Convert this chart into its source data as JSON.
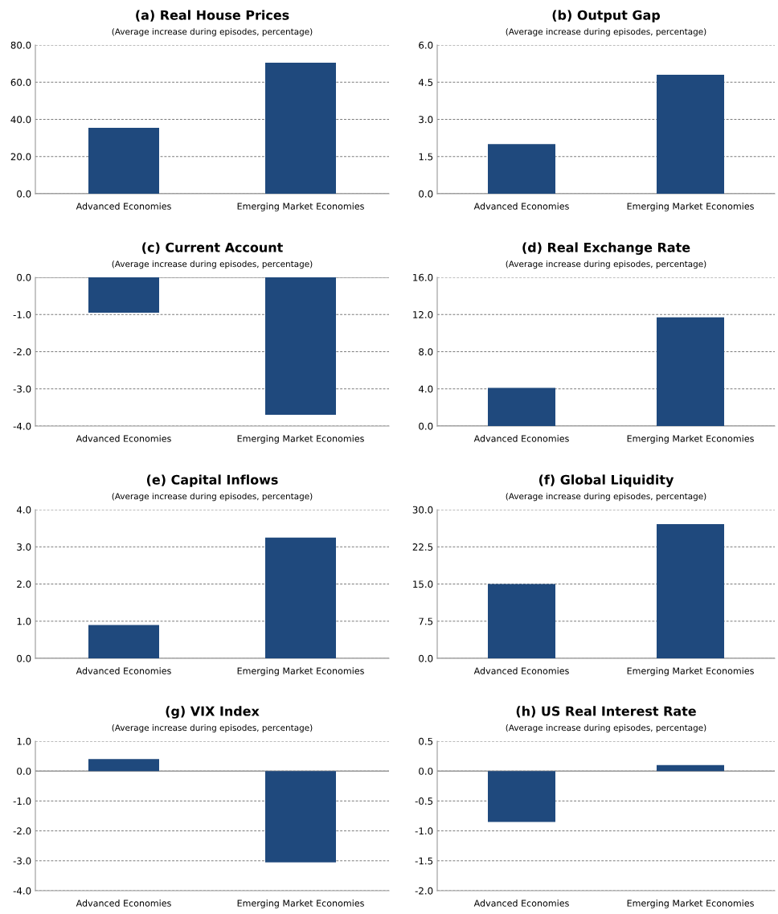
{
  "chart_data": [
    {
      "type": "bar",
      "title": "(a) Real House Prices",
      "subtitle": "(Average increase during episodes, percentage)",
      "categories": [
        "Advanced Economies",
        "Emerging Market Economies"
      ],
      "values": [
        35.5,
        70.5
      ],
      "color": "#1f497d",
      "ylim": [
        0,
        80
      ],
      "yticks": [
        {
          "value": 0,
          "label": "0.0"
        },
        {
          "value": 20,
          "label": "20.0"
        },
        {
          "value": 40,
          "label": "40.0"
        },
        {
          "value": 60,
          "label": "60.0"
        },
        {
          "value": 80,
          "label": "80.0"
        }
      ],
      "grid": "y"
    },
    {
      "type": "bar",
      "title": "(b) Output Gap",
      "subtitle": "(Average increase during episodes, percentage)",
      "categories": [
        "Advanced Economies",
        "Emerging Market Economies"
      ],
      "values": [
        2.0,
        4.8
      ],
      "color": "#1f497d",
      "ylim": [
        0,
        6
      ],
      "yticks": [
        {
          "value": 0,
          "label": "0.0"
        },
        {
          "value": 1.5,
          "label": "1.5"
        },
        {
          "value": 3,
          "label": "3.0"
        },
        {
          "value": 4.5,
          "label": "4.5"
        },
        {
          "value": 6,
          "label": "6.0"
        }
      ],
      "grid": "y"
    },
    {
      "type": "bar",
      "title": "(c) Current Account",
      "subtitle": "(Average increase during episodes, percentage)",
      "categories": [
        "Advanced Economies",
        "Emerging Market Economies"
      ],
      "values": [
        -0.95,
        -3.7
      ],
      "color": "#1f497d",
      "ylim": [
        -4,
        0
      ],
      "yticks": [
        {
          "value": -4,
          "label": "-4.0"
        },
        {
          "value": -3,
          "label": "-3.0"
        },
        {
          "value": -2,
          "label": "-2.0"
        },
        {
          "value": -1,
          "label": "-1.0"
        },
        {
          "value": 0,
          "label": "0.0"
        }
      ],
      "grid": "y"
    },
    {
      "type": "bar",
      "title": "(d) Real Exchange Rate",
      "subtitle": "(Average increase during episodes, percentage)",
      "categories": [
        "Advanced Economies",
        "Emerging Market Economies"
      ],
      "values": [
        4.1,
        11.7
      ],
      "color": "#1f497d",
      "ylim": [
        0,
        16
      ],
      "yticks": [
        {
          "value": 0,
          "label": "0.0"
        },
        {
          "value": 4,
          "label": "4.0"
        },
        {
          "value": 8,
          "label": "8.0"
        },
        {
          "value": 12,
          "label": "12.0"
        },
        {
          "value": 16,
          "label": "16.0"
        }
      ],
      "grid": "y"
    },
    {
      "type": "bar",
      "title": "(e) Capital Inflows",
      "subtitle": "(Average increase during episodes, percentage)",
      "categories": [
        "Advanced Economies",
        "Emerging Market Economies"
      ],
      "values": [
        0.9,
        3.25
      ],
      "color": "#1f497d",
      "ylim": [
        0,
        4
      ],
      "yticks": [
        {
          "value": 0,
          "label": "0.0"
        },
        {
          "value": 1,
          "label": "1.0"
        },
        {
          "value": 2,
          "label": "2.0"
        },
        {
          "value": 3,
          "label": "3.0"
        },
        {
          "value": 4,
          "label": "4.0"
        }
      ],
      "grid": "y"
    },
    {
      "type": "bar",
      "title": "(f) Global Liquidity",
      "subtitle": "(Average increase during episodes, percentage)",
      "categories": [
        "Advanced Economies",
        "Emerging Market Economies"
      ],
      "values": [
        15.0,
        27.1
      ],
      "color": "#1f497d",
      "ylim": [
        0,
        30
      ],
      "yticks": [
        {
          "value": 0,
          "label": "0.0"
        },
        {
          "value": 7.5,
          "label": "7.5"
        },
        {
          "value": 15,
          "label": "15.0"
        },
        {
          "value": 22.5,
          "label": "22.5"
        },
        {
          "value": 30,
          "label": "30.0"
        }
      ],
      "grid": "y"
    },
    {
      "type": "bar",
      "title": "(g) VIX Index",
      "subtitle": "(Average increase during episodes, percentage)",
      "categories": [
        "Advanced Economies",
        "Emerging Market Economies"
      ],
      "values": [
        0.4,
        -3.05
      ],
      "color": "#1f497d",
      "ylim": [
        -4,
        1
      ],
      "yticks": [
        {
          "value": -4,
          "label": "-4.0"
        },
        {
          "value": -3,
          "label": "-3.0"
        },
        {
          "value": -2,
          "label": "-2.0"
        },
        {
          "value": -1,
          "label": "-1.0"
        },
        {
          "value": 0,
          "label": "0.0"
        },
        {
          "value": 1,
          "label": "1.0"
        }
      ],
      "grid": "y"
    },
    {
      "type": "bar",
      "title": "(h) US Real Interest Rate",
      "subtitle": "(Average increase during episodes, percentage)",
      "categories": [
        "Advanced Economies",
        "Emerging Market Economies"
      ],
      "values": [
        -0.85,
        0.1
      ],
      "color": "#1f497d",
      "ylim": [
        -2,
        0.5
      ],
      "yticks": [
        {
          "value": -2,
          "label": "-2.0"
        },
        {
          "value": -1.5,
          "label": "-1.5"
        },
        {
          "value": -1,
          "label": "-1.0"
        },
        {
          "value": -0.5,
          "label": "-0.5"
        },
        {
          "value": 0,
          "label": "0.0"
        },
        {
          "value": 0.5,
          "label": "0.5"
        }
      ],
      "grid": "y"
    }
  ]
}
